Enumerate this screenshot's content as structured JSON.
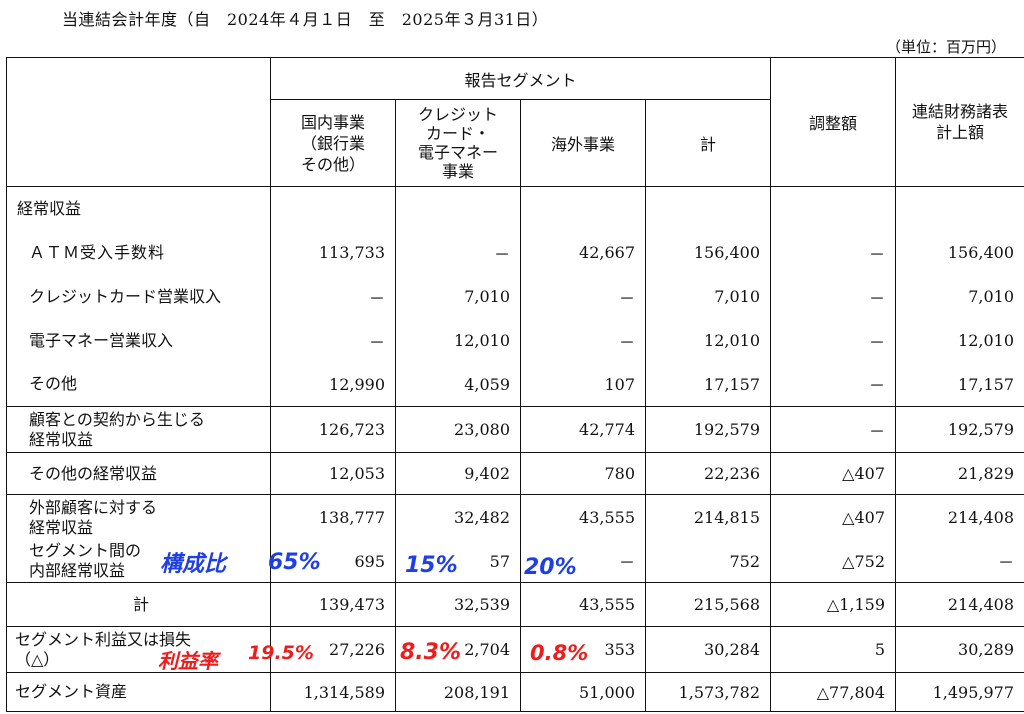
{
  "period": "当連結会計年度（自　2024年４月１日　至　2025年３月31日）",
  "unit": "（単位：百万円）",
  "headers": {
    "reportable_segments": "報告セグメント",
    "domestic": "国内事業\n（銀行業\nその他）",
    "credit": "クレジット\nカード・\n電子マネー\n事業",
    "overseas": "海外事業",
    "total": "計",
    "adjustment": "調整額",
    "consolidated": "連結財務諸表\n計上額"
  },
  "sections": {
    "ordinary_income_title": "経常収益"
  },
  "rows": [
    {
      "label": "ＡＴＭ受入手数料",
      "domestic": "113,733",
      "credit": "－",
      "overseas": "42,667",
      "total": "156,400",
      "adjustment": "－",
      "consolidated": "156,400"
    },
    {
      "label": "クレジットカード営業収入",
      "domestic": "－",
      "credit": "7,010",
      "overseas": "－",
      "total": "7,010",
      "adjustment": "－",
      "consolidated": "7,010"
    },
    {
      "label": "電子マネー営業収入",
      "domestic": "－",
      "credit": "12,010",
      "overseas": "－",
      "total": "12,010",
      "adjustment": "－",
      "consolidated": "12,010"
    },
    {
      "label": "その他",
      "domestic": "12,990",
      "credit": "4,059",
      "overseas": "107",
      "total": "17,157",
      "adjustment": "－",
      "consolidated": "17,157"
    },
    {
      "label": "顧客との契約から生じる\n経常収益",
      "domestic": "126,723",
      "credit": "23,080",
      "overseas": "42,774",
      "total": "192,579",
      "adjustment": "－",
      "consolidated": "192,579"
    },
    {
      "label": "その他の経常収益",
      "domestic": "12,053",
      "credit": "9,402",
      "overseas": "780",
      "total": "22,236",
      "adjustment": "△407",
      "consolidated": "21,829"
    },
    {
      "label": "外部顧客に対する\n経常収益",
      "domestic": "138,777",
      "credit": "32,482",
      "overseas": "43,555",
      "total": "214,815",
      "adjustment": "△407",
      "consolidated": "214,408"
    },
    {
      "label": "セグメント間の\n内部経常収益",
      "domestic": "695",
      "credit": "57",
      "overseas": "－",
      "total": "752",
      "adjustment": "△752",
      "consolidated": "－"
    },
    {
      "label": "計",
      "domestic": "139,473",
      "credit": "32,539",
      "overseas": "43,555",
      "total": "215,568",
      "adjustment": "△1,159",
      "consolidated": "214,408"
    },
    {
      "label": "セグメント利益又は損失\n（△）",
      "domestic": "27,226",
      "credit": "2,704",
      "overseas": "353",
      "total": "30,284",
      "adjustment": "5",
      "consolidated": "30,289"
    },
    {
      "label": "セグメント資産",
      "domestic": "1,314,589",
      "credit": "208,191",
      "overseas": "51,000",
      "total": "1,573,782",
      "adjustment": "△77,804",
      "consolidated": "1,495,977"
    }
  ],
  "annotations": {
    "composition_label": "構成比",
    "composition_domestic": "65%",
    "composition_credit": "15%",
    "composition_overseas": "20%",
    "margin_label": "利益率",
    "margin_domestic": "19.5%",
    "margin_credit": "8.3%",
    "margin_overseas": "0.8%"
  },
  "colors": {
    "annotation_blue": "#1f3fe6",
    "annotation_red": "#ee1c1c"
  }
}
